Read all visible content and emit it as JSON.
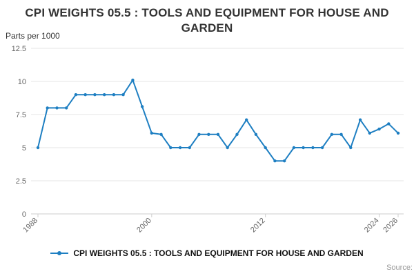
{
  "source_label": "Source:",
  "colors": {
    "series": "#1e7fc2",
    "grid": "#e6e6e6",
    "axis": "#cccccc",
    "tick_text": "#666666",
    "title_text": "#333333",
    "legend_text": "#111111",
    "source_text": "#999999"
  },
  "chart_data": {
    "type": "line",
    "title": "CPI WEIGHTS 05.5 : TOOLS AND EQUIPMENT FOR HOUSE AND GARDEN",
    "ylabel": "Parts per 1000",
    "xlabel": "",
    "ylim": [
      0,
      12.5
    ],
    "y_ticks": [
      0,
      2.5,
      5,
      7.5,
      10,
      12.5
    ],
    "x_ticks": [
      1988,
      2000,
      2012,
      2024,
      2026
    ],
    "grid": "horizontal",
    "legend_position": "bottom",
    "series": [
      {
        "name": "CPI WEIGHTS 05.5 : TOOLS AND EQUIPMENT FOR HOUSE AND GARDEN",
        "x": [
          1988,
          1989,
          1990,
          1991,
          1992,
          1993,
          1994,
          1995,
          1996,
          1997,
          1998,
          1999,
          2000,
          2001,
          2002,
          2003,
          2004,
          2005,
          2006,
          2007,
          2008,
          2009,
          2010,
          2011,
          2012,
          2013,
          2014,
          2015,
          2016,
          2017,
          2018,
          2019,
          2020,
          2021,
          2022,
          2023,
          2024,
          2025,
          2026
        ],
        "values": [
          5,
          8,
          8,
          8,
          9,
          9,
          9,
          9,
          9,
          9,
          10.1,
          8.1,
          6.1,
          6,
          5,
          5,
          5,
          6,
          6,
          6,
          5,
          6,
          7.1,
          6,
          5,
          4,
          4,
          5,
          5,
          5,
          5,
          6,
          6,
          5,
          7.1,
          6.1,
          6.4,
          6.8,
          6.1
        ]
      }
    ]
  }
}
